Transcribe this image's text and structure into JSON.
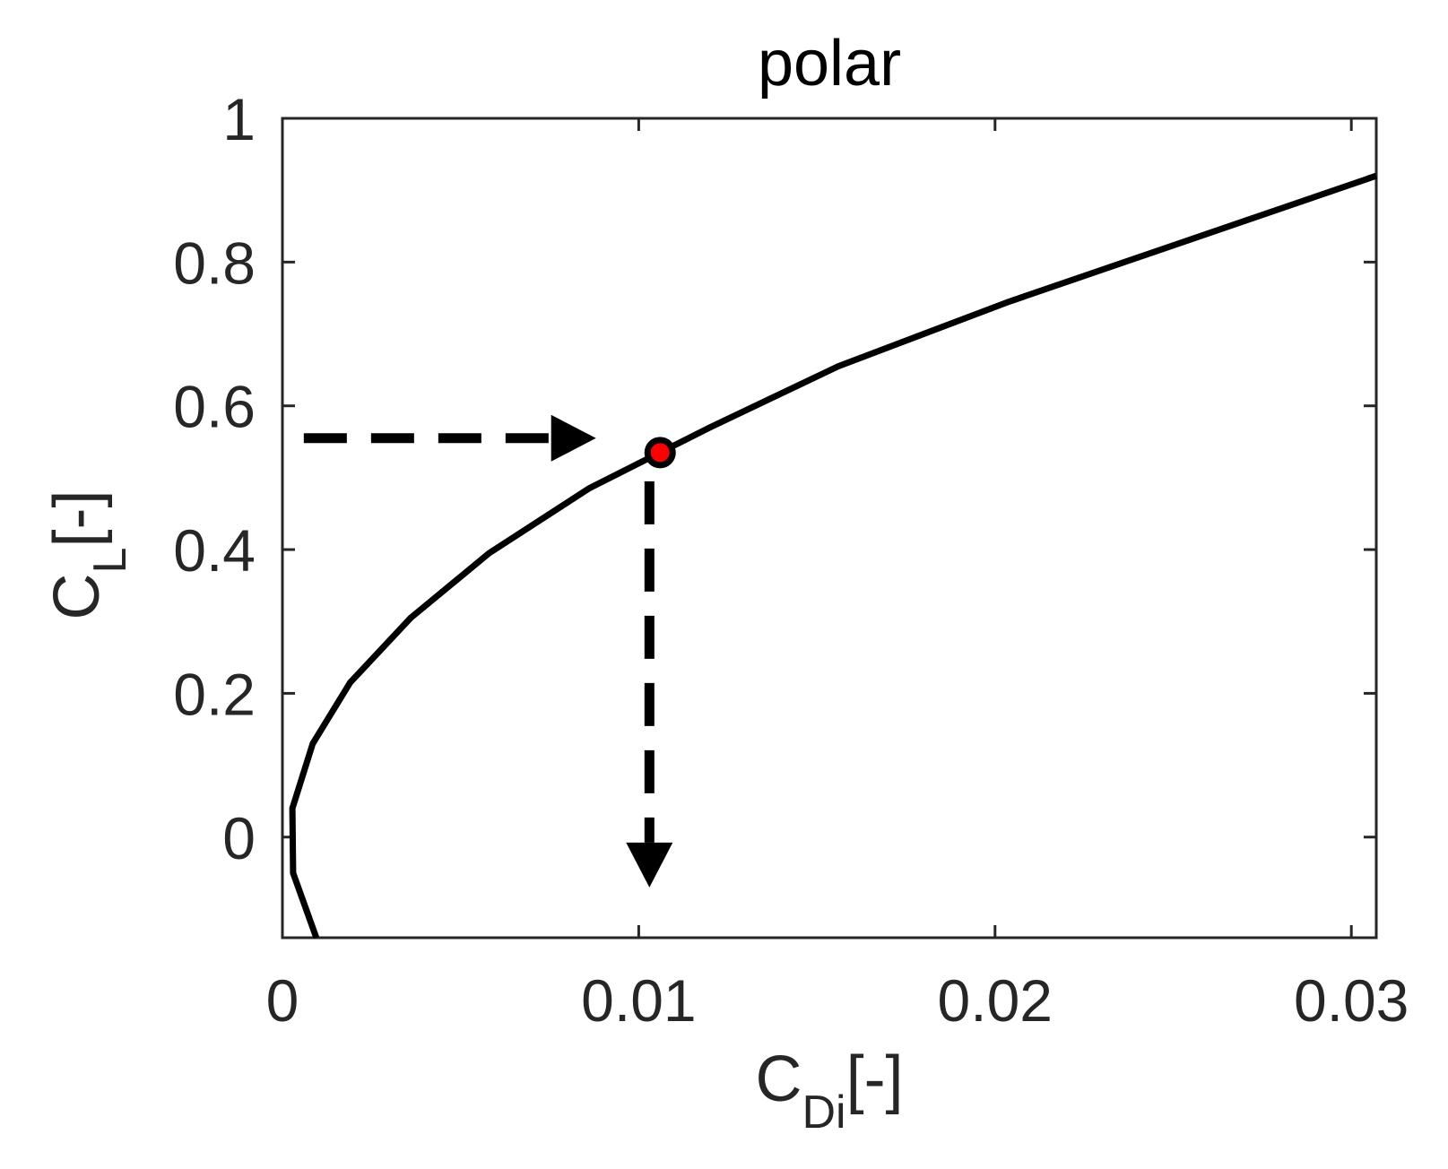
{
  "chart_data": {
    "type": "line",
    "title": "polar",
    "xlabel": {
      "main": "C",
      "sub": "Di",
      "suffix": "[-]"
    },
    "ylabel": {
      "main": "C",
      "sub": "L",
      "suffix": "[-]"
    },
    "xlim": [
      0,
      0.0307
    ],
    "ylim": [
      -0.14,
      1.0
    ],
    "xticks": [
      0,
      0.01,
      0.02,
      0.03
    ],
    "xtick_labels": [
      "0",
      "0.01",
      "0.02",
      "0.03"
    ],
    "yticks": [
      0,
      0.2,
      0.4,
      0.6,
      0.8,
      1.0
    ],
    "ytick_labels": [
      "0",
      "0.2",
      "0.4",
      "0.6",
      "0.8",
      "1"
    ],
    "grid": false,
    "series": [
      {
        "color": "#000000",
        "x": [
          0.00095,
          0.0003,
          0.00028,
          0.00085,
          0.0019,
          0.0036,
          0.0058,
          0.0086,
          0.0106,
          0.012,
          0.0156,
          0.0204,
          0.0254,
          0.0307
        ],
        "y": [
          -0.14,
          -0.05,
          0.04,
          0.13,
          0.215,
          0.305,
          0.395,
          0.485,
          0.535,
          0.57,
          0.655,
          0.745,
          0.83,
          0.92
        ]
      }
    ],
    "marker_point": {
      "x": 0.0106,
      "y": 0.535,
      "fill": "#ff0000",
      "stroke": "#000000"
    },
    "annotations": [
      {
        "type": "dashed-arrow",
        "direction": "right",
        "from": [
          0.0006,
          0.555
        ],
        "to": [
          0.0088,
          0.555
        ]
      },
      {
        "type": "dashed-arrow",
        "direction": "down",
        "from": [
          0.0103,
          0.495
        ],
        "to": [
          0.0103,
          -0.07
        ]
      }
    ]
  }
}
